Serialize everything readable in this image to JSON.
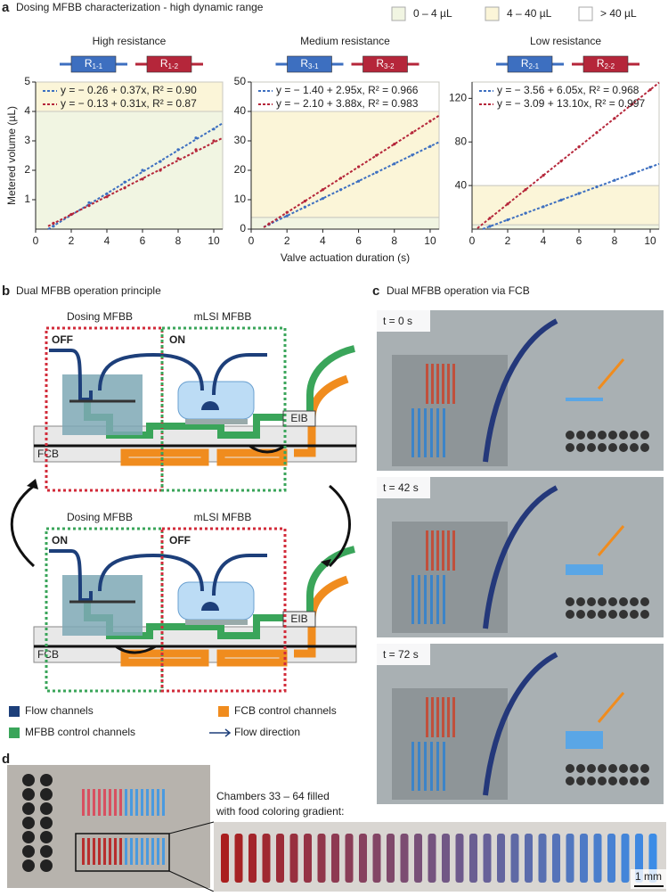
{
  "panel_a": {
    "label": "a",
    "title": "Dosing MFBB characterization - high dynamic range",
    "ranges": [
      {
        "label": "0 – 4 µL",
        "color": "#f1f5e2",
        "min": 0,
        "max": 4
      },
      {
        "label": "4 – 40 µL",
        "color": "#fbf5d8",
        "min": 4,
        "max": 40
      },
      {
        "label": "> 40 µL",
        "color": "#ffffff",
        "min": 40,
        "max": null
      }
    ]
  },
  "chart_data": [
    {
      "type": "scatter",
      "title": "High resistance",
      "ylabel": "Metered volume (µL)",
      "resistors": [
        {
          "symbol": "R",
          "sub": "1-1",
          "color": "#3d6fc0"
        },
        {
          "symbol": "R",
          "sub": "1-2",
          "color": "#b5263a"
        }
      ],
      "xlim": [
        0,
        10.5
      ],
      "ylim": [
        0,
        5
      ],
      "xticks": [
        0,
        2,
        4,
        6,
        8,
        10
      ],
      "yticks": [
        1,
        2,
        3,
        4,
        5
      ],
      "series": [
        {
          "name": "y = − 0.26 + 0.37x, R² = 0.90",
          "color": "#3d6fc0",
          "x": [
            1,
            2,
            3,
            4,
            5,
            6,
            7,
            8,
            9,
            10
          ],
          "values": [
            0.1,
            0.5,
            0.9,
            1.2,
            1.6,
            2.0,
            2.3,
            2.7,
            3.1,
            3.4
          ],
          "fit_x": [
            0.7,
            10.5
          ],
          "fit_y": [
            0.0,
            3.6
          ]
        },
        {
          "name": "y = − 0.13 + 0.31x, R² = 0.87",
          "color": "#b5263a",
          "x": [
            1,
            2,
            3,
            4,
            5,
            6,
            7,
            8,
            9,
            10
          ],
          "values": [
            0.2,
            0.5,
            0.8,
            1.1,
            1.4,
            1.7,
            2.0,
            2.4,
            2.7,
            3.0
          ],
          "fit_x": [
            0.7,
            10.5
          ],
          "fit_y": [
            0.1,
            3.1
          ]
        }
      ]
    },
    {
      "type": "scatter",
      "title": "Medium resistance",
      "xlabel": "Valve actuation duration (s)",
      "resistors": [
        {
          "symbol": "R",
          "sub": "3-1",
          "color": "#3d6fc0"
        },
        {
          "symbol": "R",
          "sub": "3-2",
          "color": "#b5263a"
        }
      ],
      "xlim": [
        0,
        10.5
      ],
      "ylim": [
        0,
        50
      ],
      "xticks": [
        0,
        2,
        4,
        6,
        8,
        10
      ],
      "yticks": [
        0,
        10,
        20,
        30,
        40,
        50
      ],
      "series": [
        {
          "name": "y = − 1.40 + 2.95x, R² = 0.966",
          "color": "#3d6fc0",
          "x": [
            1,
            2,
            3,
            4,
            5,
            6,
            7,
            8,
            9,
            10
          ],
          "values": [
            1.6,
            4.5,
            7.5,
            10.4,
            13.4,
            16.3,
            19.3,
            22.2,
            25.2,
            28.1
          ],
          "fit_x": [
            0.7,
            10.5
          ],
          "fit_y": [
            0.7,
            29.6
          ]
        },
        {
          "name": "y = − 2.10 + 3.88x, R² = 0.983",
          "color": "#b5263a",
          "x": [
            1,
            2,
            3,
            4,
            5,
            6,
            7,
            8,
            9,
            10
          ],
          "values": [
            1.8,
            5.7,
            9.5,
            13.4,
            17.3,
            21.2,
            25.1,
            28.9,
            32.8,
            36.7
          ],
          "fit_x": [
            0.7,
            10.5
          ],
          "fit_y": [
            0.6,
            38.6
          ]
        }
      ]
    },
    {
      "type": "scatter",
      "title": "Low resistance",
      "resistors": [
        {
          "symbol": "R",
          "sub": "2-1",
          "color": "#3d6fc0"
        },
        {
          "symbol": "R",
          "sub": "2-2",
          "color": "#b5263a"
        }
      ],
      "xlim": [
        0,
        10.5
      ],
      "ylim": [
        0,
        135
      ],
      "xticks": [
        0,
        2,
        4,
        6,
        8,
        10
      ],
      "yticks": [
        40,
        80,
        120
      ],
      "series": [
        {
          "name": "y = − 3.56 + 6.05x, R² = 0.968",
          "color": "#3d6fc0",
          "x": [
            1,
            2,
            3,
            4,
            5,
            6,
            7,
            8,
            9,
            10
          ],
          "values": [
            2.5,
            8.5,
            14.6,
            20.6,
            26.7,
            32.7,
            38.8,
            44.8,
            50.9,
            56.9
          ],
          "fit_x": [
            0.6,
            10.5
          ],
          "fit_y": [
            0.1,
            59.9
          ]
        },
        {
          "name": "y = − 3.09 + 13.10x, R² = 0.997",
          "color": "#b5263a",
          "x": [
            1,
            2,
            3,
            4,
            5,
            6,
            7,
            8,
            9,
            10
          ],
          "values": [
            10.0,
            23.1,
            36.2,
            49.3,
            62.4,
            75.5,
            88.6,
            101.7,
            114.8,
            127.9
          ],
          "fit_x": [
            0.3,
            10.5
          ],
          "fit_y": [
            0.8,
            134.5
          ]
        }
      ]
    }
  ],
  "panel_b": {
    "label": "b",
    "title": "Dual MFBB operation principle",
    "dosing": "Dosing  MFBB",
    "mlsi": "mLSI  MFBB",
    "eib": "EIB",
    "fcb": "FCB",
    "states": [
      {
        "left": "OFF",
        "right": "ON"
      },
      {
        "left": "ON",
        "right": "OFF"
      }
    ],
    "legend": [
      "Flow channels",
      "FCB control channels",
      "MFBB control channels",
      "Flow direction"
    ]
  },
  "panel_c": {
    "label": "c",
    "title": "Dual MFBB operation via FCB",
    "frames": [
      "t = 0 s",
      "t = 42 s",
      "t = 72 s"
    ]
  },
  "panel_d": {
    "label": "d",
    "caption": [
      "Chambers 33 – 64 filled",
      "with food coloring gradient:"
    ],
    "scale": "1 mm"
  }
}
